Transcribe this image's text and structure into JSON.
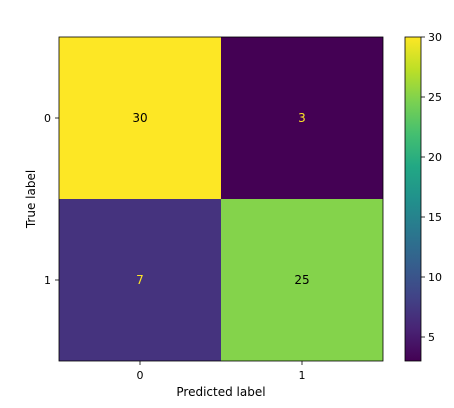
{
  "chart_data": {
    "type": "heatmap",
    "title": "",
    "xlabel": "Predicted label",
    "ylabel": "True label",
    "x_categories": [
      "0",
      "1"
    ],
    "y_categories": [
      "0",
      "1"
    ],
    "matrix": [
      [
        30,
        3
      ],
      [
        7,
        25
      ]
    ],
    "colormap": "viridis",
    "colorbar": {
      "range": [
        3,
        30
      ],
      "ticks": [
        "5",
        "10",
        "15",
        "20",
        "25",
        "30"
      ]
    },
    "colors": {
      "high_text": "#000000",
      "low_text": "#fde725"
    }
  }
}
